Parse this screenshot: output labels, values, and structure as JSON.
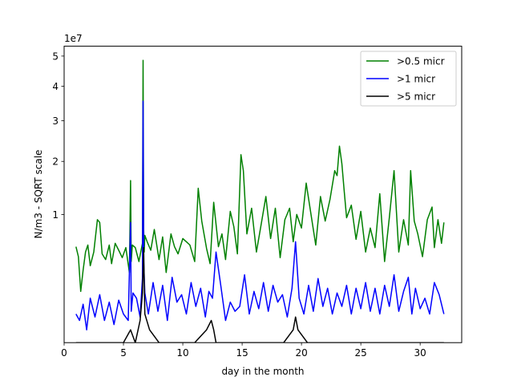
{
  "chart_data": {
    "type": "line",
    "title": "",
    "xlabel": "day in the month",
    "ylabel": "N/m3 - SQRT scale",
    "y_scale": "sqrt",
    "y_offset_label": "1e7",
    "xlim": [
      0,
      33.5
    ],
    "ylim": [
      0,
      5.35
    ],
    "x_ticks": [
      0,
      5,
      10,
      15,
      20,
      25,
      30
    ],
    "y_ticks": [
      1,
      2,
      3,
      4,
      5
    ],
    "grid": false,
    "legend_position": "top-right",
    "series": [
      {
        "name": ">0.5 micr",
        "color": "#008000",
        "x": [
          1.0,
          1.2,
          1.4,
          1.6,
          1.8,
          2.0,
          2.2,
          2.5,
          2.8,
          3.0,
          3.2,
          3.5,
          3.8,
          4.0,
          4.3,
          4.6,
          4.9,
          5.2,
          5.5,
          5.6,
          5.65,
          5.75,
          6.0,
          6.3,
          6.6,
          6.65,
          6.7,
          6.75,
          6.8,
          7.0,
          7.3,
          7.6,
          8.0,
          8.3,
          8.6,
          9.0,
          9.3,
          9.6,
          10.0,
          10.3,
          10.6,
          11.0,
          11.3,
          11.6,
          12.0,
          12.3,
          12.6,
          13.0,
          13.3,
          13.6,
          14.0,
          14.3,
          14.6,
          14.9,
          15.1,
          15.4,
          15.8,
          16.2,
          16.6,
          17.0,
          17.4,
          17.8,
          18.2,
          18.6,
          19.0,
          19.3,
          19.6,
          20.0,
          20.4,
          20.8,
          21.2,
          21.6,
          22.0,
          22.4,
          22.8,
          23.0,
          23.2,
          23.4,
          23.6,
          23.8,
          24.2,
          24.6,
          25.0,
          25.4,
          25.8,
          26.2,
          26.6,
          27.0,
          27.4,
          27.8,
          28.2,
          28.6,
          29.0,
          29.2,
          29.5,
          29.8,
          30.2,
          30.6,
          31.0,
          31.2,
          31.5,
          31.8,
          32.0
        ],
        "y": [
          0.56,
          0.45,
          0.16,
          0.32,
          0.5,
          0.58,
          0.36,
          0.5,
          0.92,
          0.88,
          0.48,
          0.42,
          0.58,
          0.38,
          0.6,
          0.52,
          0.44,
          0.55,
          0.3,
          1.6,
          0.4,
          0.58,
          0.55,
          0.4,
          0.6,
          4.85,
          0.8,
          0.5,
          0.7,
          0.62,
          0.52,
          0.78,
          0.42,
          0.68,
          0.3,
          0.72,
          0.56,
          0.48,
          0.66,
          0.62,
          0.58,
          0.4,
          1.45,
          0.9,
          0.54,
          0.38,
          1.2,
          0.56,
          0.72,
          0.42,
          1.05,
          0.82,
          0.48,
          2.15,
          1.8,
          0.72,
          1.1,
          0.5,
          0.85,
          1.3,
          0.66,
          1.1,
          0.44,
          0.92,
          1.1,
          0.62,
          1.0,
          0.8,
          1.55,
          1.0,
          0.58,
          1.3,
          0.9,
          1.25,
          1.8,
          1.7,
          2.35,
          1.95,
          1.4,
          0.95,
          1.15,
          0.65,
          1.05,
          0.5,
          0.8,
          0.55,
          1.35,
          0.4,
          0.95,
          1.8,
          0.5,
          0.92,
          0.58,
          1.8,
          0.9,
          0.72,
          0.45,
          0.92,
          1.12,
          0.55,
          0.92,
          0.6,
          0.88
        ]
      },
      {
        "name": ">1 micr",
        "color": "#0000ff",
        "x": [
          1.0,
          1.3,
          1.6,
          1.9,
          2.2,
          2.6,
          3.0,
          3.4,
          3.8,
          4.2,
          4.6,
          5.0,
          5.4,
          5.6,
          5.65,
          5.8,
          6.1,
          6.4,
          6.6,
          6.65,
          6.7,
          6.8,
          7.1,
          7.5,
          7.9,
          8.3,
          8.7,
          9.1,
          9.5,
          9.9,
          10.3,
          10.7,
          11.1,
          11.5,
          11.9,
          12.2,
          12.5,
          12.8,
          13.2,
          13.6,
          14.0,
          14.4,
          14.8,
          15.2,
          15.6,
          16.0,
          16.4,
          16.8,
          17.2,
          17.6,
          18.0,
          18.4,
          18.8,
          19.2,
          19.5,
          19.8,
          20.2,
          20.6,
          21.0,
          21.4,
          21.8,
          22.2,
          22.6,
          23.0,
          23.4,
          23.8,
          24.2,
          24.6,
          25.0,
          25.4,
          25.8,
          26.2,
          26.6,
          27.0,
          27.4,
          27.8,
          28.2,
          28.6,
          29.0,
          29.3,
          29.6,
          30.0,
          30.4,
          30.8,
          31.2,
          31.6,
          32.0
        ],
        "y": [
          0.05,
          0.03,
          0.09,
          0.01,
          0.12,
          0.04,
          0.14,
          0.03,
          0.1,
          0.02,
          0.11,
          0.05,
          0.03,
          0.88,
          0.06,
          0.15,
          0.12,
          0.04,
          0.25,
          3.55,
          0.4,
          0.15,
          0.05,
          0.22,
          0.06,
          0.2,
          0.03,
          0.26,
          0.1,
          0.14,
          0.05,
          0.22,
          0.08,
          0.18,
          0.04,
          0.16,
          0.12,
          0.5,
          0.2,
          0.03,
          0.1,
          0.06,
          0.08,
          0.28,
          0.05,
          0.16,
          0.07,
          0.22,
          0.06,
          0.2,
          0.1,
          0.14,
          0.04,
          0.18,
          0.62,
          0.12,
          0.05,
          0.2,
          0.06,
          0.25,
          0.08,
          0.18,
          0.05,
          0.15,
          0.08,
          0.2,
          0.05,
          0.18,
          0.07,
          0.22,
          0.06,
          0.18,
          0.05,
          0.2,
          0.08,
          0.28,
          0.06,
          0.16,
          0.26,
          0.05,
          0.18,
          0.07,
          0.12,
          0.05,
          0.22,
          0.14,
          0.05
        ]
      },
      {
        "name": ">5 micr",
        "color": "#000000",
        "x": [
          1.0,
          2.0,
          3.0,
          4.0,
          5.0,
          5.6,
          6.0,
          6.4,
          6.6,
          6.7,
          6.8,
          7.2,
          8.0,
          9.0,
          10.0,
          11.0,
          12.0,
          12.4,
          12.6,
          12.8,
          13.5,
          14.5,
          15.5,
          16.5,
          17.5,
          18.5,
          19.3,
          19.5,
          19.7,
          20.5,
          21.5,
          22.5,
          23.5,
          24.5,
          25.5,
          26.5,
          27.5,
          28.5,
          29.5,
          30.5,
          31.5,
          32.0
        ],
        "y": [
          0.0,
          0.0,
          0.0,
          0.0,
          0.0,
          0.01,
          0.0,
          0.03,
          0.15,
          0.55,
          0.05,
          0.01,
          0.0,
          0.0,
          0.0,
          0.0,
          0.01,
          0.03,
          0.01,
          0.0,
          0.0,
          0.0,
          0.0,
          0.0,
          0.0,
          0.0,
          0.01,
          0.04,
          0.01,
          0.0,
          0.0,
          0.0,
          0.0,
          0.0,
          0.0,
          0.0,
          0.0,
          0.0,
          0.0,
          0.0,
          0.0,
          0.0
        ]
      }
    ]
  }
}
